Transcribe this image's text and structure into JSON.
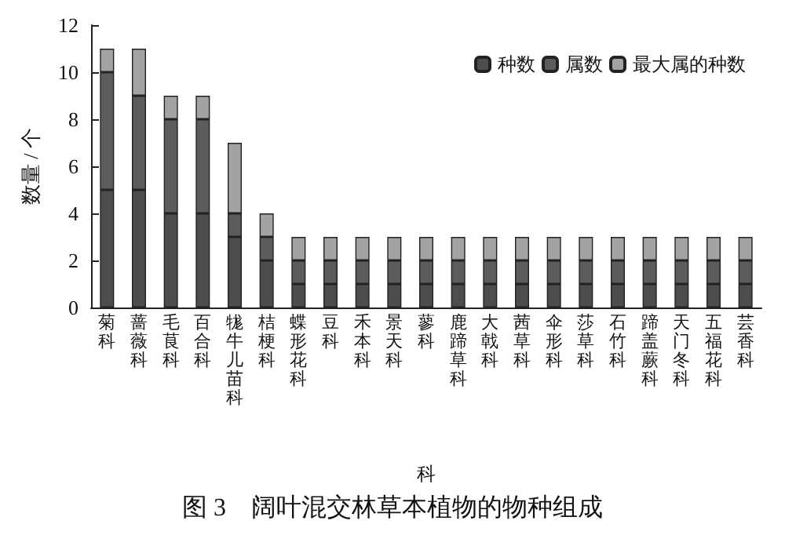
{
  "chart_data": {
    "type": "bar",
    "stacked": true,
    "title": "图 3　阔叶混交林草本植物的物种组成",
    "xlabel": "科",
    "ylabel": "数量 / 个",
    "categories": [
      "菊科",
      "蔷薇科",
      "毛茛科",
      "百合科",
      "牻牛儿苗科",
      "桔梗科",
      "蝶形花科",
      "豆科",
      "禾本科",
      "景天科",
      "蓼科",
      "鹿蹄草科",
      "大戟科",
      "茜草科",
      "伞形科",
      "莎草科",
      "石竹科",
      "蹄盖蕨科",
      "天门冬科",
      "五福花科",
      "芸香科"
    ],
    "series": [
      {
        "name": "种数",
        "color": "#4d4d4d",
        "values": [
          5,
          5,
          4,
          4,
          3,
          2,
          1,
          1,
          1,
          1,
          1,
          1,
          1,
          1,
          1,
          1,
          1,
          1,
          1,
          1,
          1
        ]
      },
      {
        "name": "属数",
        "color": "#5c5c5c",
        "values": [
          5,
          4,
          4,
          4,
          1,
          1,
          1,
          1,
          1,
          1,
          1,
          1,
          1,
          1,
          1,
          1,
          1,
          1,
          1,
          1,
          1
        ]
      },
      {
        "name": "最大属的种数",
        "color": "#a3a3a3",
        "values": [
          1,
          2,
          1,
          1,
          3,
          1,
          1,
          1,
          1,
          1,
          1,
          1,
          1,
          1,
          1,
          1,
          1,
          1,
          1,
          1,
          1
        ]
      }
    ],
    "ylim": [
      0,
      12
    ],
    "yticks": [
      0,
      2,
      4,
      6,
      8,
      10,
      12
    ],
    "grid": false,
    "legend": "top right"
  }
}
